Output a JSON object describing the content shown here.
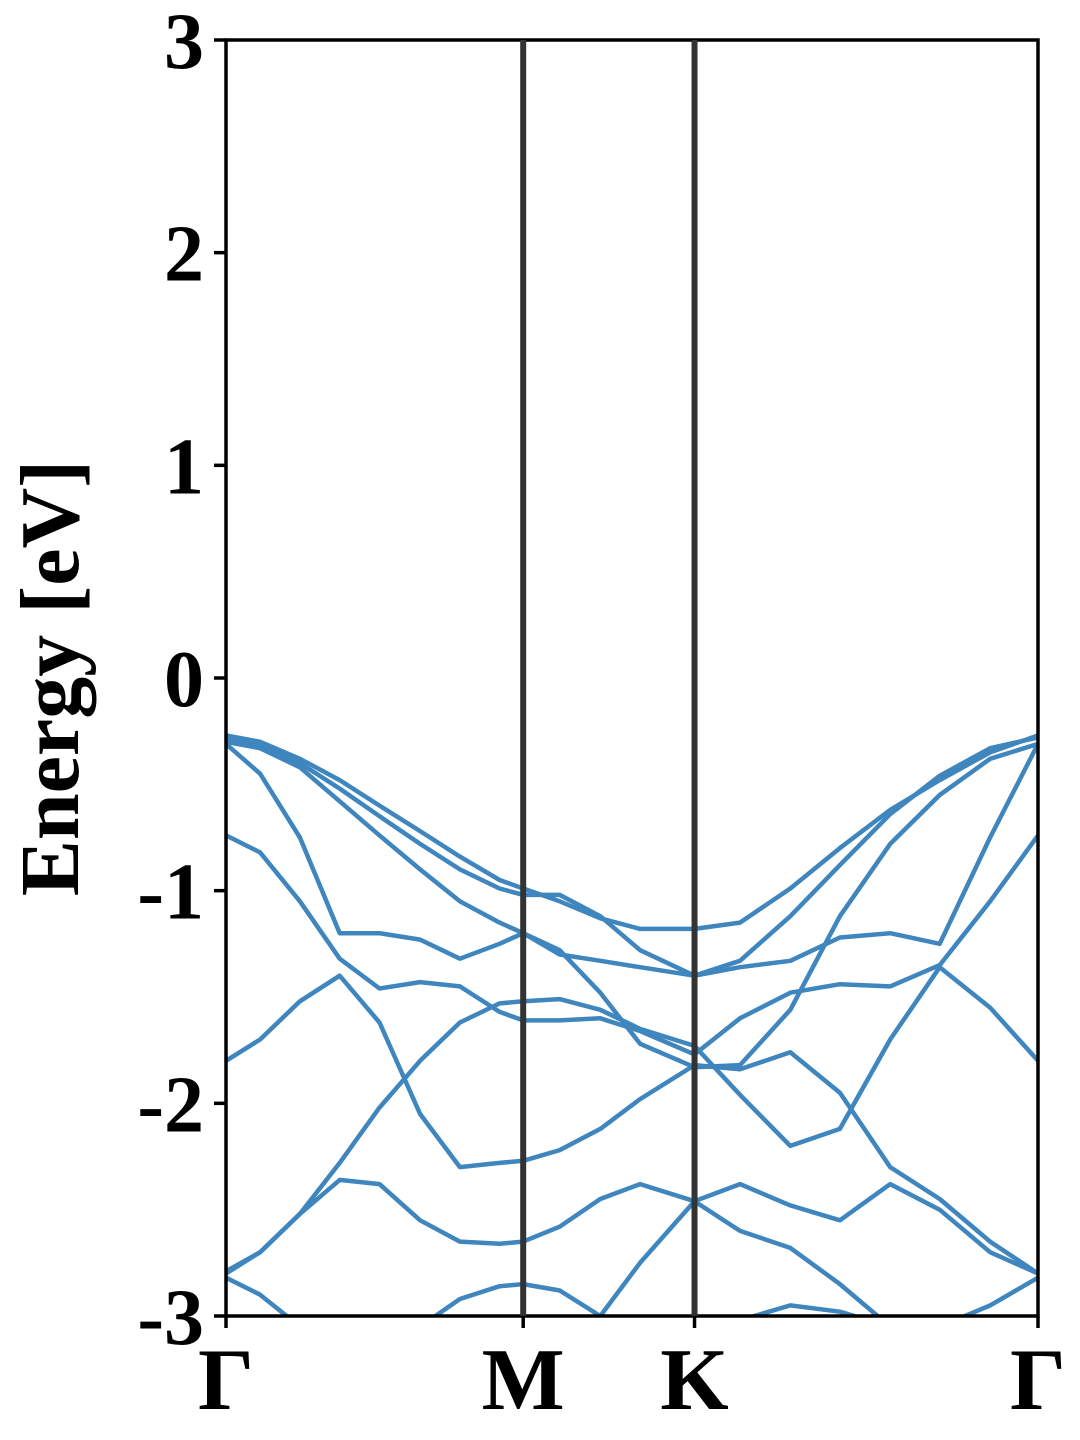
{
  "chart_data": {
    "type": "line",
    "ylabel": "Energy [eV]",
    "x": [
      0,
      0.042,
      0.091,
      0.14,
      0.189,
      0.239,
      0.288,
      0.337,
      0.366,
      0.411,
      0.461,
      0.51,
      0.577,
      0.633,
      0.695,
      0.756,
      0.818,
      0.879,
      0.941,
      1
    ],
    "xlim": [
      0,
      1
    ],
    "xticks": [
      {
        "value": 0,
        "label": "Γ"
      },
      {
        "value": 0.366,
        "label": "M"
      },
      {
        "value": 0.577,
        "label": "K"
      },
      {
        "value": 1,
        "label": "Γ"
      }
    ],
    "ylim": [
      -3,
      3
    ],
    "yticks": [
      -3,
      -2,
      -1,
      0,
      1,
      2,
      3
    ],
    "color": "#3f86bf",
    "series": [
      {
        "values": [
          -0.27,
          -0.3,
          -0.38,
          -0.48,
          -0.6,
          -0.72,
          -0.84,
          -0.95,
          -0.99,
          -1.05,
          -1.13,
          -1.18,
          -1.18,
          -1.15,
          -0.99,
          -0.8,
          -0.62,
          -0.48,
          -0.35,
          -0.27
        ]
      },
      {
        "values": [
          -0.28,
          -0.31,
          -0.4,
          -0.52,
          -0.65,
          -0.78,
          -0.9,
          -0.99,
          -1.02,
          -1.02,
          -1.12,
          -1.28,
          -1.4,
          -1.33,
          -1.12,
          -0.88,
          -0.64,
          -0.46,
          -0.33,
          -0.28
        ]
      },
      {
        "values": [
          -0.31,
          -0.45,
          -0.75,
          -1.2,
          -1.2,
          -1.23,
          -1.32,
          -1.25,
          -1.2,
          -1.3,
          -1.33,
          -1.36,
          -1.4,
          -1.36,
          -1.33,
          -1.22,
          -1.2,
          -1.25,
          -0.75,
          -0.31
        ]
      },
      {
        "values": [
          -0.3,
          -0.33,
          -0.42,
          -0.58,
          -0.74,
          -0.9,
          -1.05,
          -1.15,
          -1.2,
          -1.28,
          -1.48,
          -1.72,
          -1.83,
          -1.82,
          -1.56,
          -1.12,
          -0.78,
          -0.55,
          -0.38,
          -0.31
        ]
      },
      {
        "values": [
          -0.74,
          -0.82,
          -1.05,
          -1.32,
          -1.46,
          -1.43,
          -1.45,
          -1.57,
          -1.61,
          -1.61,
          -1.6,
          -1.66,
          -1.77,
          -1.6,
          -1.48,
          -1.44,
          -1.45,
          -1.35,
          -1.05,
          -0.74
        ]
      },
      {
        "values": [
          -1.8,
          -1.7,
          -1.52,
          -1.4,
          -1.62,
          -2.05,
          -2.3,
          -2.28,
          -2.27,
          -2.22,
          -2.12,
          -1.98,
          -1.82,
          -1.84,
          -1.76,
          -1.95,
          -2.3,
          -2.45,
          -2.65,
          -2.8
        ]
      },
      {
        "values": [
          -2.79,
          -2.7,
          -2.52,
          -2.28,
          -2.02,
          -1.8,
          -1.62,
          -1.53,
          -1.52,
          -1.51,
          -1.56,
          -1.65,
          -1.73,
          -1.96,
          -2.2,
          -2.12,
          -1.7,
          -1.36,
          -1.55,
          -1.8
        ]
      },
      {
        "values": [
          -2.8,
          -2.7,
          -2.52,
          -2.36,
          -2.38,
          -2.55,
          -2.65,
          -2.66,
          -2.65,
          -2.58,
          -2.45,
          -2.38,
          -2.46,
          -2.38,
          -2.48,
          -2.55,
          -2.38,
          -2.5,
          -2.7,
          -2.8
        ]
      },
      {
        "values": [
          -2.82,
          -2.9,
          -3.05,
          -3.2,
          -3.2,
          -3.05,
          -2.92,
          -2.86,
          -2.85,
          -2.88,
          -3.0,
          -2.75,
          -2.46,
          -2.6,
          -2.68,
          -2.85,
          -3.05,
          -3.05,
          -2.95,
          -2.82
        ]
      },
      {
        "values": [
          null,
          null,
          null,
          null,
          null,
          null,
          null,
          null,
          null,
          null,
          null,
          null,
          null,
          -3.02,
          -2.95,
          -2.98,
          -3.05,
          null,
          null,
          null
        ]
      }
    ]
  }
}
